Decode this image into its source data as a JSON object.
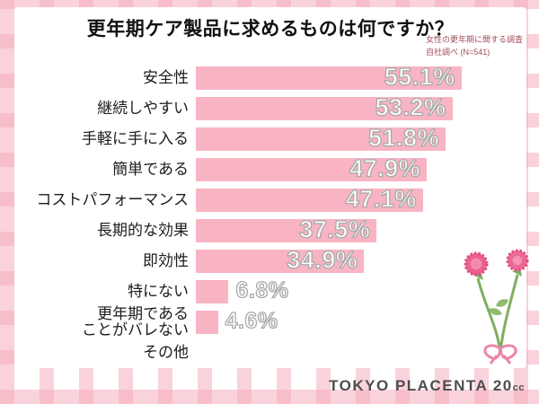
{
  "title": "更年期ケア製品に求めるものは何ですか？",
  "survey_note": {
    "line1": "女性の更年期に関する調査",
    "line2": "自社調べ (N=541)"
  },
  "logo": {
    "text": "TOKYO PLACENTA 20",
    "unit": "cc"
  },
  "colors": {
    "bar": "#f8b4c2",
    "value_fill": "#ffffff",
    "value_outline": "#a9a9a9",
    "plaid": "#f5aebd",
    "note_text": "#a14b58"
  },
  "chart_data": {
    "type": "bar",
    "orientation": "horizontal",
    "title": "更年期ケア製品に求めるものは何ですか？",
    "source_note": "女性の更年期に関する調査 自社調べ (N=541)",
    "categories": [
      "安全性",
      "継続しやすい",
      "手軽に手に入る",
      "簡単である",
      "コストパフォーマンス",
      "長期的な効果",
      "即効性",
      "特にない",
      "更年期である\nことがバレない",
      "その他"
    ],
    "values": [
      55.1,
      53.2,
      51.8,
      47.9,
      47.1,
      37.5,
      34.9,
      6.8,
      4.6,
      null
    ],
    "value_labels": [
      "55.1%",
      "53.2%",
      "51.8%",
      "47.9%",
      "47.1%",
      "37.5%",
      "34.9%",
      "6.8%",
      "4.6%",
      ""
    ],
    "xlim": [
      0,
      60
    ],
    "xlabel": "",
    "ylabel": "",
    "grid": false,
    "legend": false,
    "bar_color": "#f8b4c2"
  }
}
